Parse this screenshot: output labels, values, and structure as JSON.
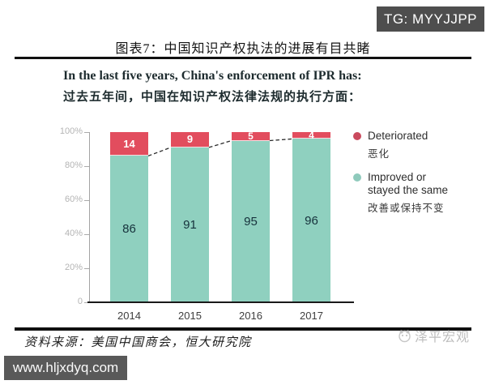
{
  "badges": {
    "telegram": "TG: MYYJJPP",
    "website": "www.hljxdyq.com"
  },
  "figure": {
    "title": "图表7：中国知识产权执法的进展有目共睹"
  },
  "chart": {
    "title_en": "In the last five years, China's enforcement of IPR has:",
    "title_zh": "过去五年间，中国在知识产权法律法规的执行方面："
  },
  "chart_data": {
    "type": "bar",
    "stacked": true,
    "unit": "percent",
    "title": "In the last five years, China's enforcement of IPR has:",
    "categories": [
      "2014",
      "2015",
      "2016",
      "2017"
    ],
    "series": [
      {
        "name": "Improved or stayed the same",
        "name_zh": "改善或保持不变",
        "color": "#8fd0bf",
        "label_color": "#16323c",
        "values": [
          86,
          91,
          95,
          96
        ]
      },
      {
        "name": "Deteriorated",
        "name_zh": "恶化",
        "color": "#e24d5e",
        "label_color": "#ffffff",
        "values": [
          14,
          9,
          5,
          4
        ]
      }
    ],
    "y_axis": {
      "range": [
        0,
        100
      ],
      "ticks": [
        0,
        20,
        40,
        60,
        80,
        100
      ],
      "tick_labels": [
        "0",
        "20%",
        "40%",
        "60%",
        "80%",
        "100%"
      ]
    },
    "trend_line": {
      "style": "dashed",
      "connects": "top of improved segment between adjacent bars",
      "values": [
        86,
        91,
        95,
        96
      ],
      "color": "#2b2b2b"
    },
    "legend_position": "right",
    "legend": [
      {
        "label_en": "Deteriorated",
        "label_zh": "恶化",
        "color": "#ca4a5d"
      },
      {
        "label_en": "Improved or stayed the same",
        "label_zh": "改善或保持不变",
        "color": "#8fcabc"
      }
    ],
    "grid": false
  },
  "source": {
    "text": "资料来源：美国中国商会，恒大研究院"
  },
  "watermark": {
    "text": "泽平宏观"
  }
}
